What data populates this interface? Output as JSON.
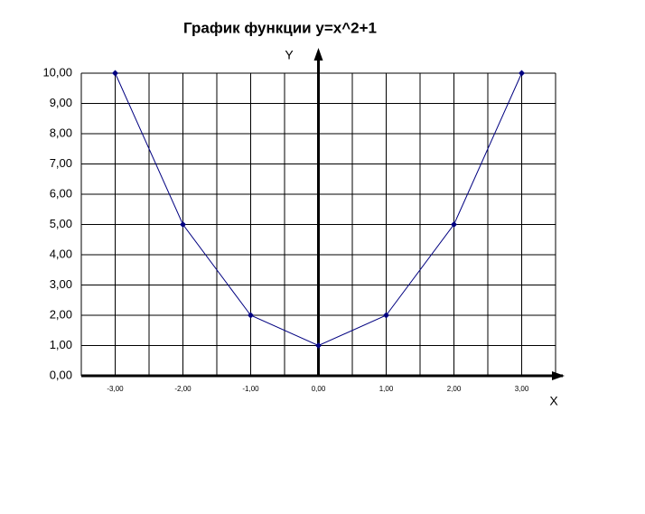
{
  "chart_data": {
    "type": "line",
    "title": "График функции y=x^2+1",
    "xlabel": "X",
    "ylabel": "Y",
    "x": [
      -3,
      -2,
      -1,
      0,
      1,
      2,
      3
    ],
    "series": [
      {
        "color": "#000080",
        "values": [
          10,
          5,
          2,
          1,
          2,
          5,
          10
        ]
      }
    ],
    "xlim": [
      -3.5,
      3.5
    ],
    "xticks": [
      {
        "value": -3,
        "label": "-3,00"
      },
      {
        "value": -2,
        "label": "-2,00"
      },
      {
        "value": -1,
        "label": "-1,00"
      },
      {
        "value": 0,
        "label": "0,00"
      },
      {
        "value": 1,
        "label": "1,00"
      },
      {
        "value": 2,
        "label": "2,00"
      },
      {
        "value": 3,
        "label": "3,00"
      }
    ],
    "ylim": [
      0,
      10
    ],
    "yticks": [
      {
        "value": 0,
        "label": "0,00"
      },
      {
        "value": 1,
        "label": "1,00"
      },
      {
        "value": 2,
        "label": "2,00"
      },
      {
        "value": 3,
        "label": "3,00"
      },
      {
        "value": 4,
        "label": "4,00"
      },
      {
        "value": 5,
        "label": "5,00"
      },
      {
        "value": 6,
        "label": "6,00"
      },
      {
        "value": 7,
        "label": "7,00"
      },
      {
        "value": 8,
        "label": "8,00"
      },
      {
        "value": 9,
        "label": "9,00"
      },
      {
        "value": 10,
        "label": "10,00"
      }
    ],
    "grid": true
  }
}
